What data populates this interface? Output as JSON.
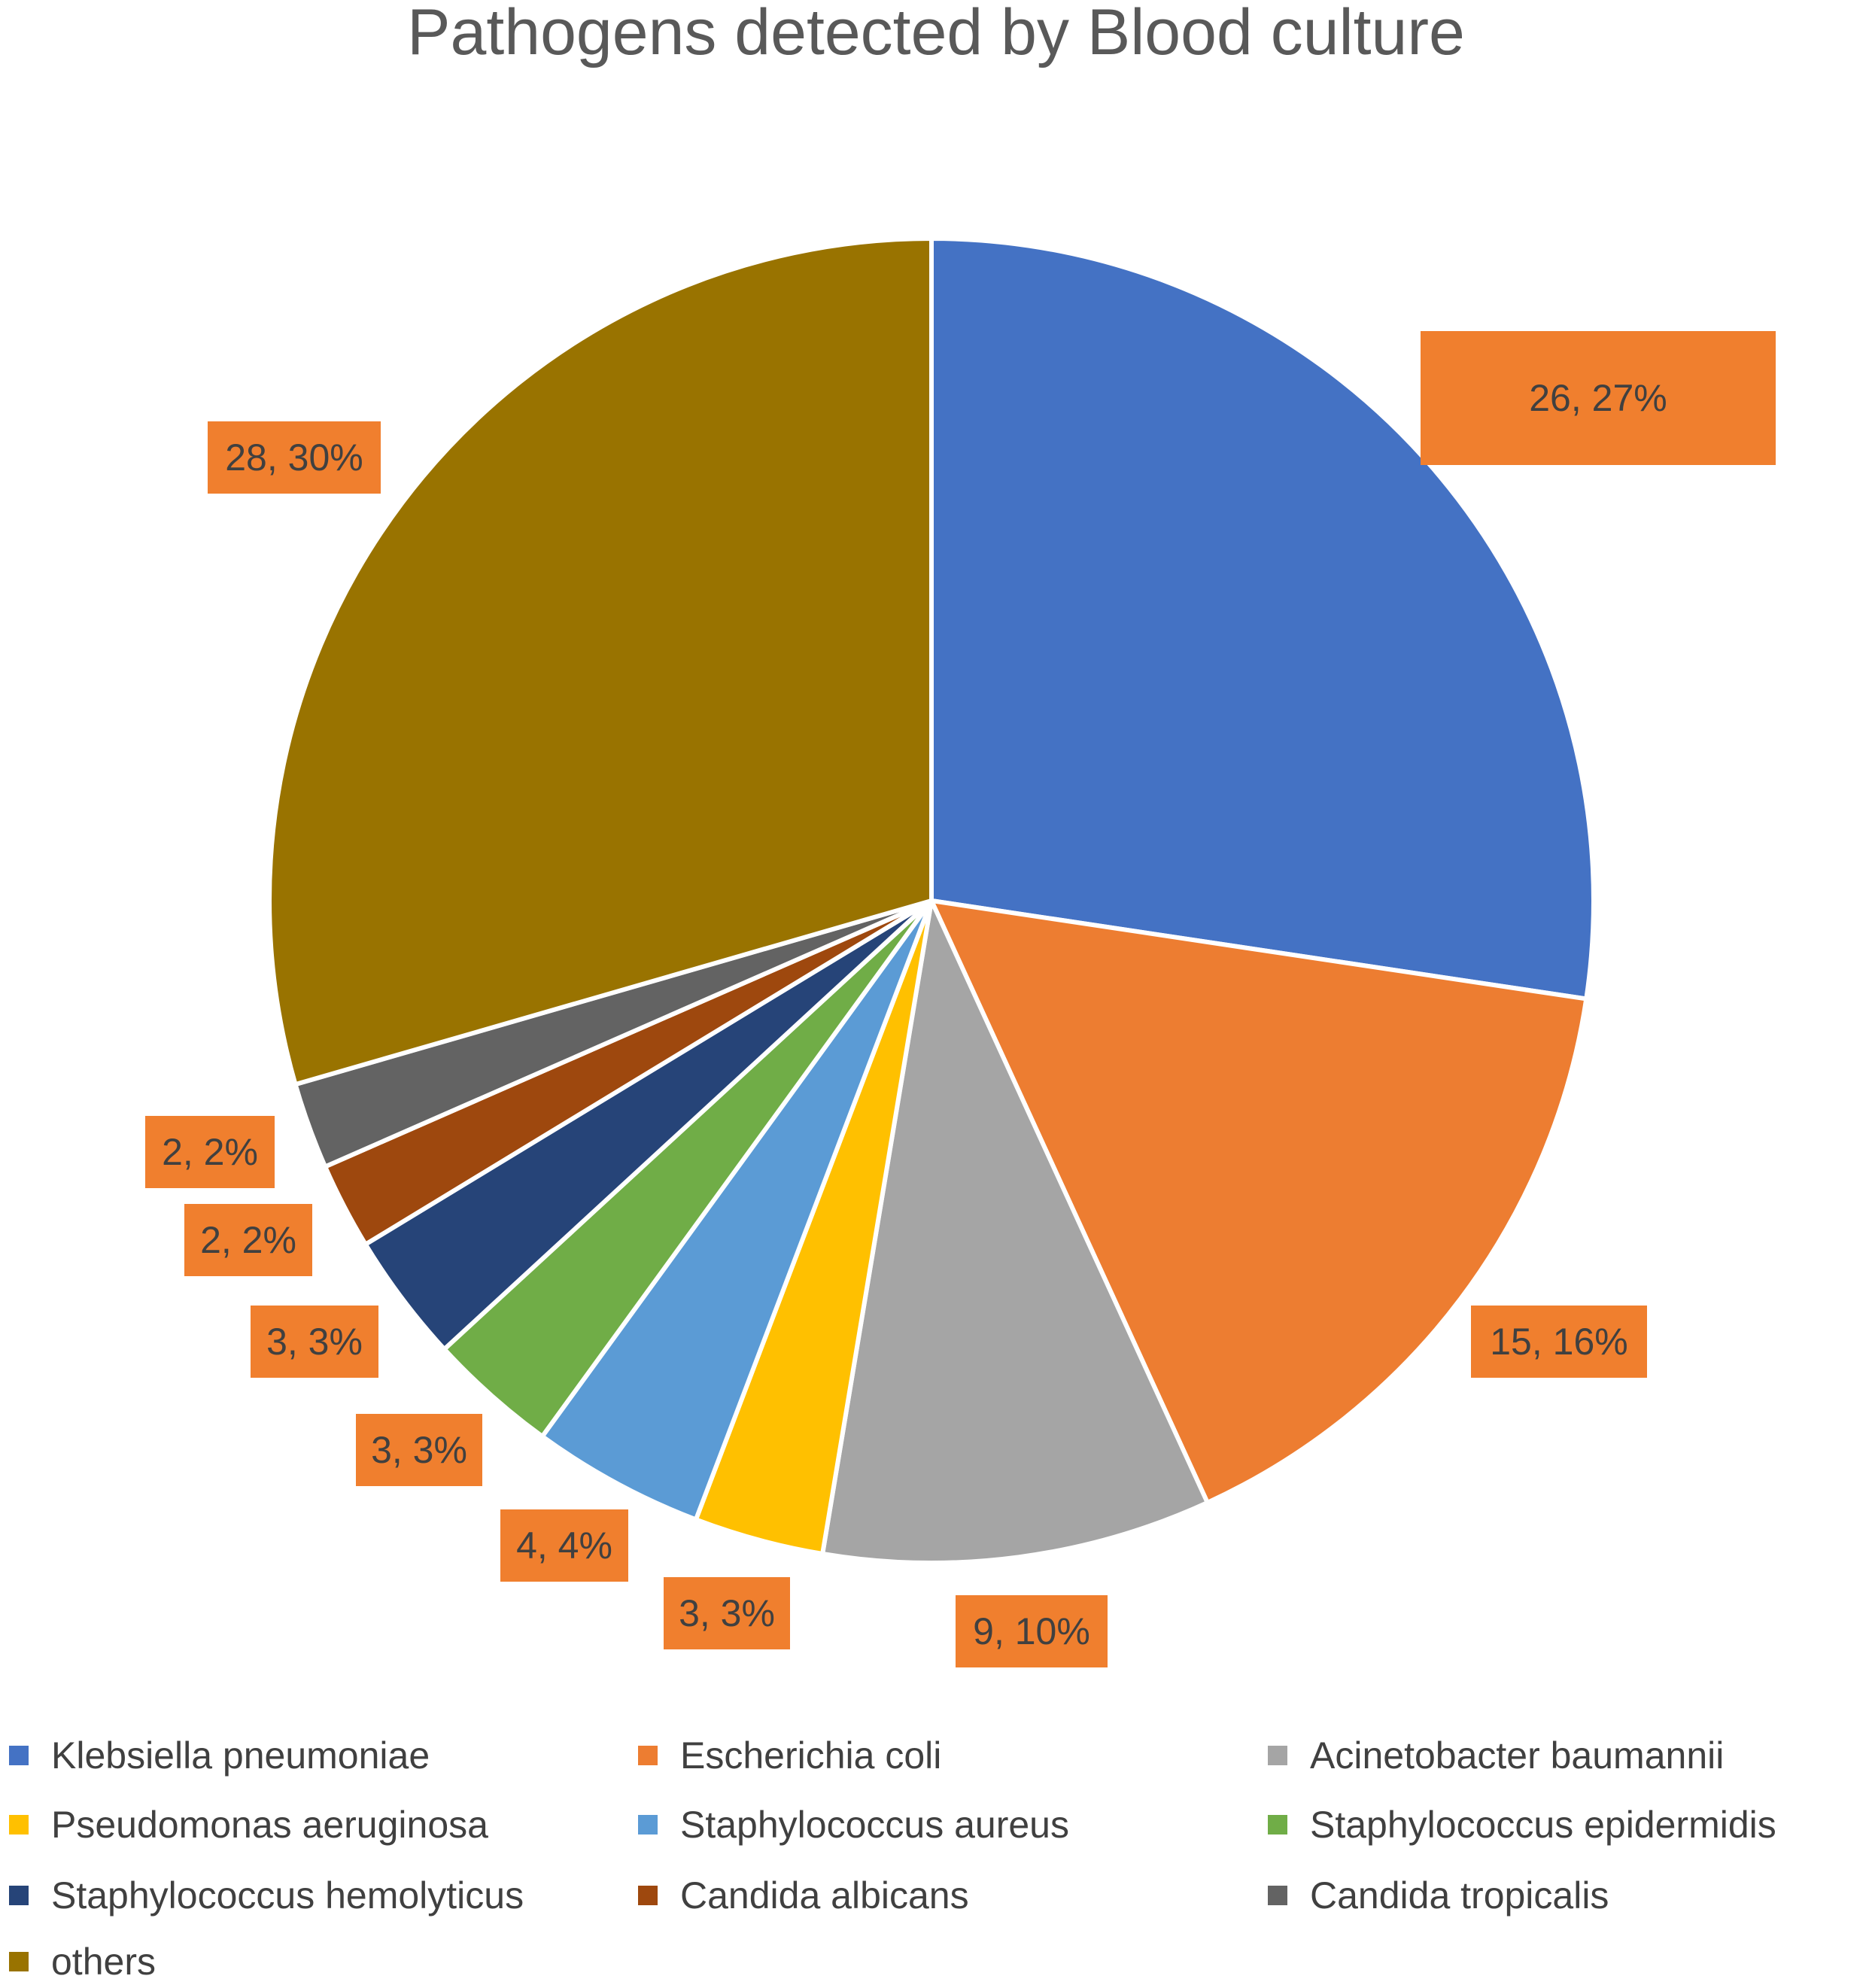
{
  "chart_data": {
    "type": "pie",
    "title": "Pathogens detected by Blood culture",
    "start_angle_deg": 0,
    "direction": "clockwise",
    "legend_position": "bottom",
    "slices": [
      {
        "name": "Klebsiella pneumoniae",
        "value": 26,
        "percent": 27,
        "label": "26, 27%",
        "color": "#4472c4"
      },
      {
        "name": "Escherichia coli",
        "value": 15,
        "percent": 16,
        "label": "15, 16%",
        "color": "#ed7d31"
      },
      {
        "name": "Acinetobacter baumannii",
        "value": 9,
        "percent": 10,
        "label": "9, 10%",
        "color": "#a5a5a5"
      },
      {
        "name": "Pseudomonas aeruginosa",
        "value": 3,
        "percent": 3,
        "label": "3, 3%",
        "color": "#ffc000"
      },
      {
        "name": "Staphylococcus aureus",
        "value": 4,
        "percent": 4,
        "label": "4, 4%",
        "color": "#5b9bd5"
      },
      {
        "name": "Staphylococcus epidermidis",
        "value": 3,
        "percent": 3,
        "label": "3, 3%",
        "color": "#70ad47"
      },
      {
        "name": "Staphylococcus hemolyticus",
        "value": 3,
        "percent": 3,
        "label": "3, 3%",
        "color": "#264478"
      },
      {
        "name": "Candida albicans",
        "value": 2,
        "percent": 2,
        "label": "2, 2%",
        "color": "#9e480e"
      },
      {
        "name": "Candida tropicalis",
        "value": 2,
        "percent": 2,
        "label": "2, 2%",
        "color": "#636363"
      },
      {
        "name": "others",
        "value": 28,
        "percent": 30,
        "label": "28, 30%",
        "color": "#997300"
      }
    ]
  }
}
